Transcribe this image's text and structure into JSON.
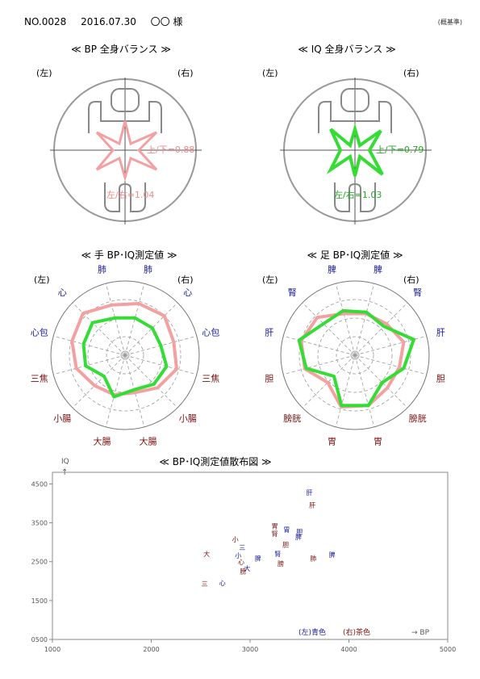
{
  "header": {
    "no": "NO.0028",
    "date": "2016.07.30",
    "name": "〇〇 様",
    "note": "(概基準)"
  },
  "colors": {
    "bp": "#f4a0a0",
    "iq": "#33dd33",
    "bp_text": "#f08a8a",
    "iq_text": "#22aa22",
    "blue_label": "#1a1aa0",
    "brown_label": "#7a1010",
    "gray": "#999999"
  },
  "balance": {
    "bp": {
      "title": "≪ BP 全身バランス ≫",
      "left": "(左)",
      "right": "(右)",
      "ud": "上/下=0.88",
      "lr": "左/右=1.04"
    },
    "iq": {
      "title": "≪ IQ 全身バランス ≫",
      "left": "(左)",
      "right": "(右)",
      "ud": "上/下=0.79",
      "lr": "左/右=1.03"
    }
  },
  "radar_hand": {
    "title": "≪ 手 BP･IQ測定値 ≫",
    "left": "(左)",
    "right": "(右)",
    "labels": [
      "肺",
      "心",
      "心包",
      "三焦",
      "小腸",
      "大腸",
      "大腸",
      "小腸",
      "三焦",
      "心包",
      "心",
      "肺"
    ],
    "label_colors": [
      "blue",
      "blue",
      "blue",
      "brown",
      "brown",
      "brown",
      "brown",
      "brown",
      "brown",
      "blue",
      "blue",
      "blue"
    ],
    "bp": [
      0.72,
      0.75,
      0.68,
      0.72,
      0.62,
      0.52,
      0.55,
      0.58,
      0.68,
      0.74,
      0.8,
      0.7
    ],
    "iq": [
      0.52,
      0.52,
      0.5,
      0.58,
      0.55,
      0.48,
      0.58,
      0.4,
      0.55,
      0.58,
      0.62,
      0.52
    ]
  },
  "radar_foot": {
    "title": "≪ 足 BP･IQ測定値 ≫",
    "left": "(左)",
    "right": "(右)",
    "labels": [
      "脾",
      "腎",
      "肝",
      "胆",
      "膀胱",
      "胃",
      "胃",
      "膀胱",
      "胆",
      "肝",
      "腎",
      "脾"
    ],
    "label_colors": [
      "blue",
      "blue",
      "blue",
      "brown",
      "brown",
      "brown",
      "brown",
      "brown",
      "brown",
      "blue",
      "blue",
      "blue"
    ],
    "bp": [
      0.58,
      0.6,
      0.68,
      0.62,
      0.62,
      0.7,
      0.72,
      0.52,
      0.7,
      0.75,
      0.72,
      0.58
    ],
    "iq": [
      0.6,
      0.55,
      0.82,
      0.68,
      0.52,
      0.7,
      0.7,
      0.4,
      0.68,
      0.78,
      0.6,
      0.62
    ]
  },
  "chart_data": {
    "type": "scatter",
    "title": "≪ BP･IQ測定値散布図 ≫",
    "xlabel": "→ BP",
    "ylabel": "IQ",
    "xlim": [
      1000,
      5000
    ],
    "ylim": [
      500,
      4800
    ],
    "xticks": [
      "1000",
      "2000",
      "3000",
      "4000",
      "5000"
    ],
    "yticks": [
      "0500",
      "1500",
      "2500",
      "3500",
      "4500"
    ],
    "legend": {
      "left": "(左)青色",
      "right": "(右)茶色"
    },
    "points": [
      {
        "label": "肝",
        "side": "L",
        "x": 3600,
        "y": 4280
      },
      {
        "label": "肝",
        "side": "R",
        "x": 3630,
        "y": 3960
      },
      {
        "label": "胃",
        "side": "R",
        "x": 3250,
        "y": 3420
      },
      {
        "label": "胃",
        "side": "L",
        "x": 3370,
        "y": 3320
      },
      {
        "label": "腎",
        "side": "R",
        "x": 3250,
        "y": 3220
      },
      {
        "label": "胆",
        "side": "L",
        "x": 3500,
        "y": 3270
      },
      {
        "label": "脾",
        "side": "L",
        "x": 3490,
        "y": 3140
      },
      {
        "label": "小",
        "side": "R",
        "x": 2850,
        "y": 3080
      },
      {
        "label": "胆",
        "side": "R",
        "x": 3360,
        "y": 2940
      },
      {
        "label": "三",
        "side": "L",
        "x": 2920,
        "y": 2870
      },
      {
        "label": "腎",
        "side": "L",
        "x": 3280,
        "y": 2700
      },
      {
        "label": "大",
        "side": "R",
        "x": 2560,
        "y": 2700
      },
      {
        "label": "小",
        "side": "L",
        "x": 2880,
        "y": 2660
      },
      {
        "label": "脾",
        "side": "L",
        "x": 3080,
        "y": 2590
      },
      {
        "label": "脾",
        "side": "L",
        "x": 3830,
        "y": 2680
      },
      {
        "label": "肺",
        "side": "R",
        "x": 3640,
        "y": 2590
      },
      {
        "label": "膀",
        "side": "R",
        "x": 3310,
        "y": 2450
      },
      {
        "label": "心",
        "side": "R",
        "x": 2910,
        "y": 2490
      },
      {
        "label": "大",
        "side": "L",
        "x": 2970,
        "y": 2330
      },
      {
        "label": "膀",
        "side": "R",
        "x": 2930,
        "y": 2260
      },
      {
        "label": "心",
        "side": "L",
        "x": 2720,
        "y": 1950
      },
      {
        "label": "三",
        "side": "R",
        "x": 2540,
        "y": 1930
      }
    ]
  }
}
